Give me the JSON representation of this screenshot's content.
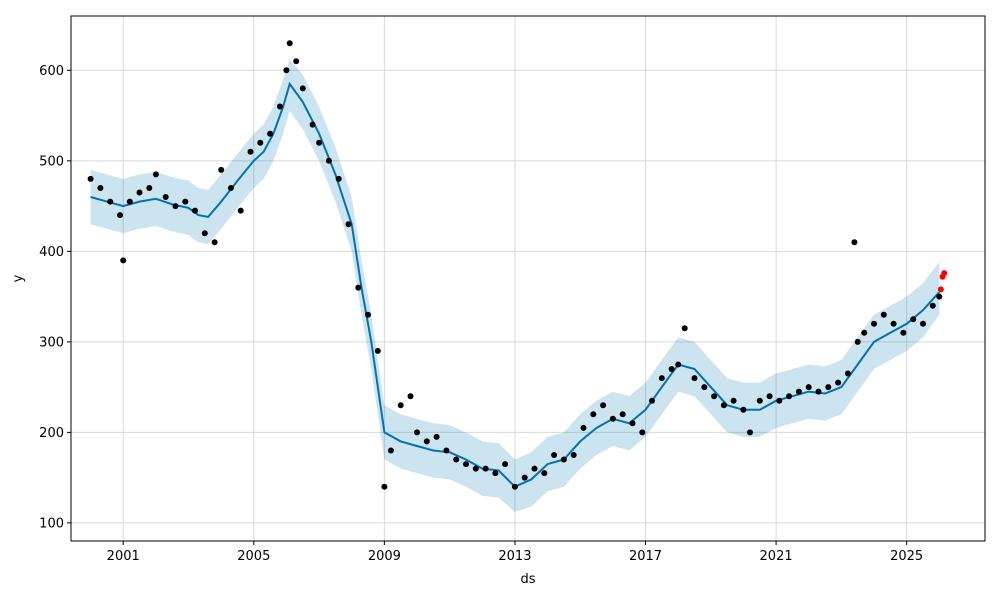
{
  "chart_data": {
    "type": "line",
    "title": "",
    "xlabel": "ds",
    "ylabel": "y",
    "grid": true,
    "legend": "none",
    "xlim": [
      1999.4,
      2027.4
    ],
    "ylim": [
      80,
      660
    ],
    "x_ticks": [
      {
        "value": 2001,
        "label": "2001"
      },
      {
        "value": 2005,
        "label": "2005"
      },
      {
        "value": 2009,
        "label": "2009"
      },
      {
        "value": 2013,
        "label": "2013"
      },
      {
        "value": 2017,
        "label": "2017"
      },
      {
        "value": 2021,
        "label": "2021"
      },
      {
        "value": 2025,
        "label": "2025"
      }
    ],
    "y_ticks": [
      {
        "value": 100,
        "label": "100"
      },
      {
        "value": 200,
        "label": "200"
      },
      {
        "value": 300,
        "label": "300"
      },
      {
        "value": 400,
        "label": "400"
      },
      {
        "value": 500,
        "label": "500"
      },
      {
        "value": 600,
        "label": "600"
      }
    ],
    "colors": {
      "forecast_line": "#0072B2",
      "uncertainty_band": "#0072B2",
      "observed_points": "#000000",
      "future_points": "#ff0000",
      "grid": "#d9d9d9"
    },
    "series": [
      {
        "role": "forecast",
        "x": [
          2000.0,
          2000.5,
          2001.0,
          2001.5,
          2002.0,
          2002.5,
          2003.0,
          2003.3,
          2003.6,
          2004.0,
          2004.5,
          2005.0,
          2005.3,
          2005.6,
          2005.9,
          2006.1,
          2006.5,
          2007.0,
          2007.5,
          2008.0,
          2008.3,
          2008.6,
          2009.0,
          2009.5,
          2010.0,
          2010.5,
          2011.0,
          2011.5,
          2012.0,
          2012.5,
          2013.0,
          2013.5,
          2014.0,
          2014.5,
          2015.0,
          2015.5,
          2016.0,
          2016.5,
          2017.0,
          2017.5,
          2018.0,
          2018.5,
          2019.0,
          2019.5,
          2020.0,
          2020.5,
          2021.0,
          2021.5,
          2022.0,
          2022.5,
          2023.0,
          2023.5,
          2024.0,
          2024.5,
          2025.0,
          2025.5,
          2026.0
        ],
        "values": [
          460,
          455,
          450,
          455,
          458,
          452,
          448,
          440,
          438,
          455,
          478,
          500,
          510,
          530,
          560,
          585,
          565,
          530,
          485,
          430,
          360,
          300,
          200,
          190,
          185,
          180,
          178,
          170,
          160,
          158,
          140,
          148,
          165,
          170,
          190,
          205,
          215,
          210,
          225,
          250,
          275,
          270,
          250,
          230,
          225,
          225,
          235,
          240,
          245,
          243,
          250,
          275,
          300,
          310,
          320,
          335,
          355
        ]
      },
      {
        "role": "uncertainty_upper",
        "x": [
          2000.0,
          2000.5,
          2001.0,
          2001.5,
          2002.0,
          2002.5,
          2003.0,
          2003.3,
          2003.6,
          2004.0,
          2004.5,
          2005.0,
          2005.3,
          2005.6,
          2005.9,
          2006.1,
          2006.5,
          2007.0,
          2007.5,
          2008.0,
          2008.3,
          2008.6,
          2009.0,
          2009.5,
          2010.0,
          2010.5,
          2011.0,
          2011.5,
          2012.0,
          2012.5,
          2013.0,
          2013.5,
          2014.0,
          2014.5,
          2015.0,
          2015.5,
          2016.0,
          2016.5,
          2017.0,
          2017.5,
          2018.0,
          2018.5,
          2019.0,
          2019.5,
          2020.0,
          2020.5,
          2021.0,
          2021.5,
          2022.0,
          2022.5,
          2023.0,
          2023.5,
          2024.0,
          2024.5,
          2025.0,
          2025.5,
          2026.0
        ],
        "values": [
          490,
          485,
          480,
          485,
          488,
          482,
          478,
          470,
          468,
          485,
          508,
          530,
          540,
          560,
          590,
          612,
          595,
          560,
          515,
          460,
          390,
          330,
          230,
          220,
          215,
          210,
          208,
          200,
          190,
          188,
          170,
          178,
          195,
          200,
          220,
          235,
          245,
          240,
          255,
          280,
          305,
          300,
          280,
          260,
          255,
          255,
          265,
          270,
          275,
          273,
          280,
          305,
          330,
          340,
          350,
          365,
          388
        ]
      },
      {
        "role": "uncertainty_lower",
        "x": [
          2000.0,
          2000.5,
          2001.0,
          2001.5,
          2002.0,
          2002.5,
          2003.0,
          2003.3,
          2003.6,
          2004.0,
          2004.5,
          2005.0,
          2005.3,
          2005.6,
          2005.9,
          2006.1,
          2006.5,
          2007.0,
          2007.5,
          2008.0,
          2008.3,
          2008.6,
          2009.0,
          2009.5,
          2010.0,
          2010.5,
          2011.0,
          2011.5,
          2012.0,
          2012.5,
          2013.0,
          2013.5,
          2014.0,
          2014.5,
          2015.0,
          2015.5,
          2016.0,
          2016.5,
          2017.0,
          2017.5,
          2018.0,
          2018.5,
          2019.0,
          2019.5,
          2020.0,
          2020.5,
          2021.0,
          2021.5,
          2022.0,
          2022.5,
          2023.0,
          2023.5,
          2024.0,
          2024.5,
          2025.0,
          2025.5,
          2026.0
        ],
        "values": [
          430,
          425,
          420,
          425,
          428,
          422,
          418,
          410,
          408,
          425,
          448,
          470,
          480,
          500,
          530,
          555,
          535,
          500,
          455,
          400,
          330,
          270,
          170,
          160,
          155,
          150,
          148,
          140,
          130,
          128,
          112,
          118,
          135,
          140,
          160,
          175,
          185,
          180,
          195,
          220,
          245,
          240,
          220,
          200,
          195,
          195,
          205,
          210,
          215,
          213,
          220,
          245,
          270,
          280,
          290,
          305,
          330
        ]
      },
      {
        "role": "observed",
        "x": [
          2000.0,
          2000.3,
          2000.6,
          2000.9,
          2001.0,
          2001.2,
          2001.5,
          2001.8,
          2002.0,
          2002.3,
          2002.6,
          2002.9,
          2003.2,
          2003.5,
          2003.8,
          2004.0,
          2004.3,
          2004.6,
          2004.9,
          2005.2,
          2005.5,
          2005.8,
          2006.0,
          2006.1,
          2006.3,
          2006.5,
          2006.8,
          2007.0,
          2007.3,
          2007.6,
          2007.9,
          2008.2,
          2008.5,
          2008.8,
          2009.0,
          2009.2,
          2009.5,
          2009.8,
          2010.0,
          2010.3,
          2010.6,
          2010.9,
          2011.2,
          2011.5,
          2011.8,
          2012.1,
          2012.4,
          2012.7,
          2013.0,
          2013.3,
          2013.6,
          2013.9,
          2014.2,
          2014.5,
          2014.8,
          2015.1,
          2015.4,
          2015.7,
          2016.0,
          2016.3,
          2016.6,
          2016.9,
          2017.2,
          2017.5,
          2017.8,
          2018.0,
          2018.2,
          2018.5,
          2018.8,
          2019.1,
          2019.4,
          2019.7,
          2020.0,
          2020.2,
          2020.5,
          2020.8,
          2021.1,
          2021.4,
          2021.7,
          2022.0,
          2022.3,
          2022.6,
          2022.9,
          2023.2,
          2023.4,
          2023.5,
          2023.7,
          2024.0,
          2024.3,
          2024.6,
          2024.9,
          2025.2,
          2025.5,
          2025.8,
          2026.0
        ],
        "values": [
          480,
          470,
          455,
          440,
          390,
          455,
          465,
          470,
          485,
          460,
          450,
          455,
          445,
          420,
          410,
          490,
          470,
          445,
          510,
          520,
          530,
          560,
          600,
          630,
          610,
          580,
          540,
          520,
          500,
          480,
          430,
          360,
          330,
          290,
          140,
          180,
          230,
          240,
          200,
          190,
          195,
          180,
          170,
          165,
          160,
          160,
          155,
          165,
          140,
          150,
          160,
          155,
          175,
          170,
          175,
          205,
          220,
          230,
          215,
          220,
          210,
          200,
          235,
          260,
          270,
          275,
          315,
          260,
          250,
          240,
          230,
          235,
          225,
          200,
          235,
          240,
          235,
          240,
          245,
          250,
          245,
          250,
          255,
          265,
          410,
          300,
          310,
          320,
          330,
          320,
          310,
          325,
          320,
          340,
          350
        ]
      },
      {
        "role": "future_observed",
        "x": [
          2026.05,
          2026.1,
          2026.15
        ],
        "values": [
          358,
          372,
          376
        ]
      }
    ]
  }
}
